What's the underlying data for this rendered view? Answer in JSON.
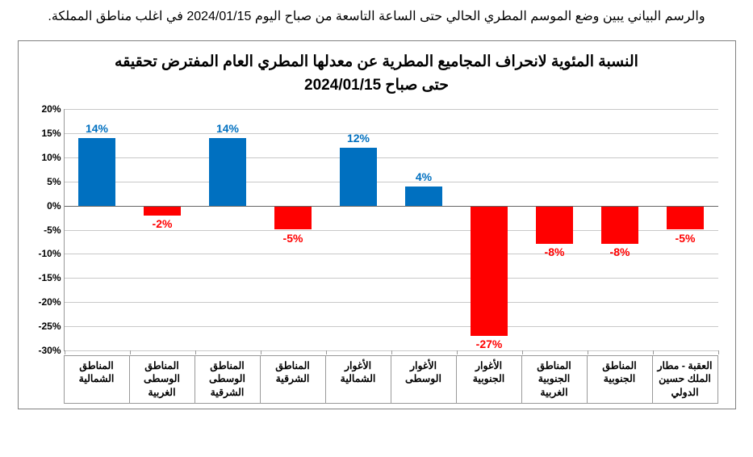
{
  "caption": "والرسم البياني يبين وضع الموسم المطري الحالي حتى الساعة التاسعة من صباح اليوم 2024/01/15 في اغلب مناطق المملكة.",
  "chart": {
    "type": "bar",
    "title_line1": "النسبة المئوية لانحراف المجاميع المطرية عن معدلها المطري العام المفترض تحقيقه",
    "title_line2": "حتى صباح 2024/01/15",
    "ylim": [
      -30,
      20
    ],
    "ytick_step": 5,
    "y_suffix": "%",
    "positive_color": "#0070c0",
    "negative_color": "#ff0000",
    "grid_color": "#c8c8c8",
    "background": "#ffffff",
    "border_color": "#808080",
    "bar_width": 0.56,
    "title_fontsize": 19,
    "label_fontsize": 12.5,
    "value_fontsize": 14,
    "categories": [
      "المناطق الشمالية",
      "المناطق الوسطى الغربية",
      "المناطق الوسطى الشرقية",
      "المناطق الشرقية",
      "الأغوار الشمالية",
      "الأغوار الوسطى",
      "الأغوار الجنوبية",
      "المناطق الجنوبية الغربية",
      "المناطق الجنوبية",
      "العقبة - مطار الملك حسين الدولي"
    ],
    "values": [
      14,
      -2,
      14,
      -5,
      12,
      4,
      -27,
      -8,
      -8,
      -5
    ]
  }
}
